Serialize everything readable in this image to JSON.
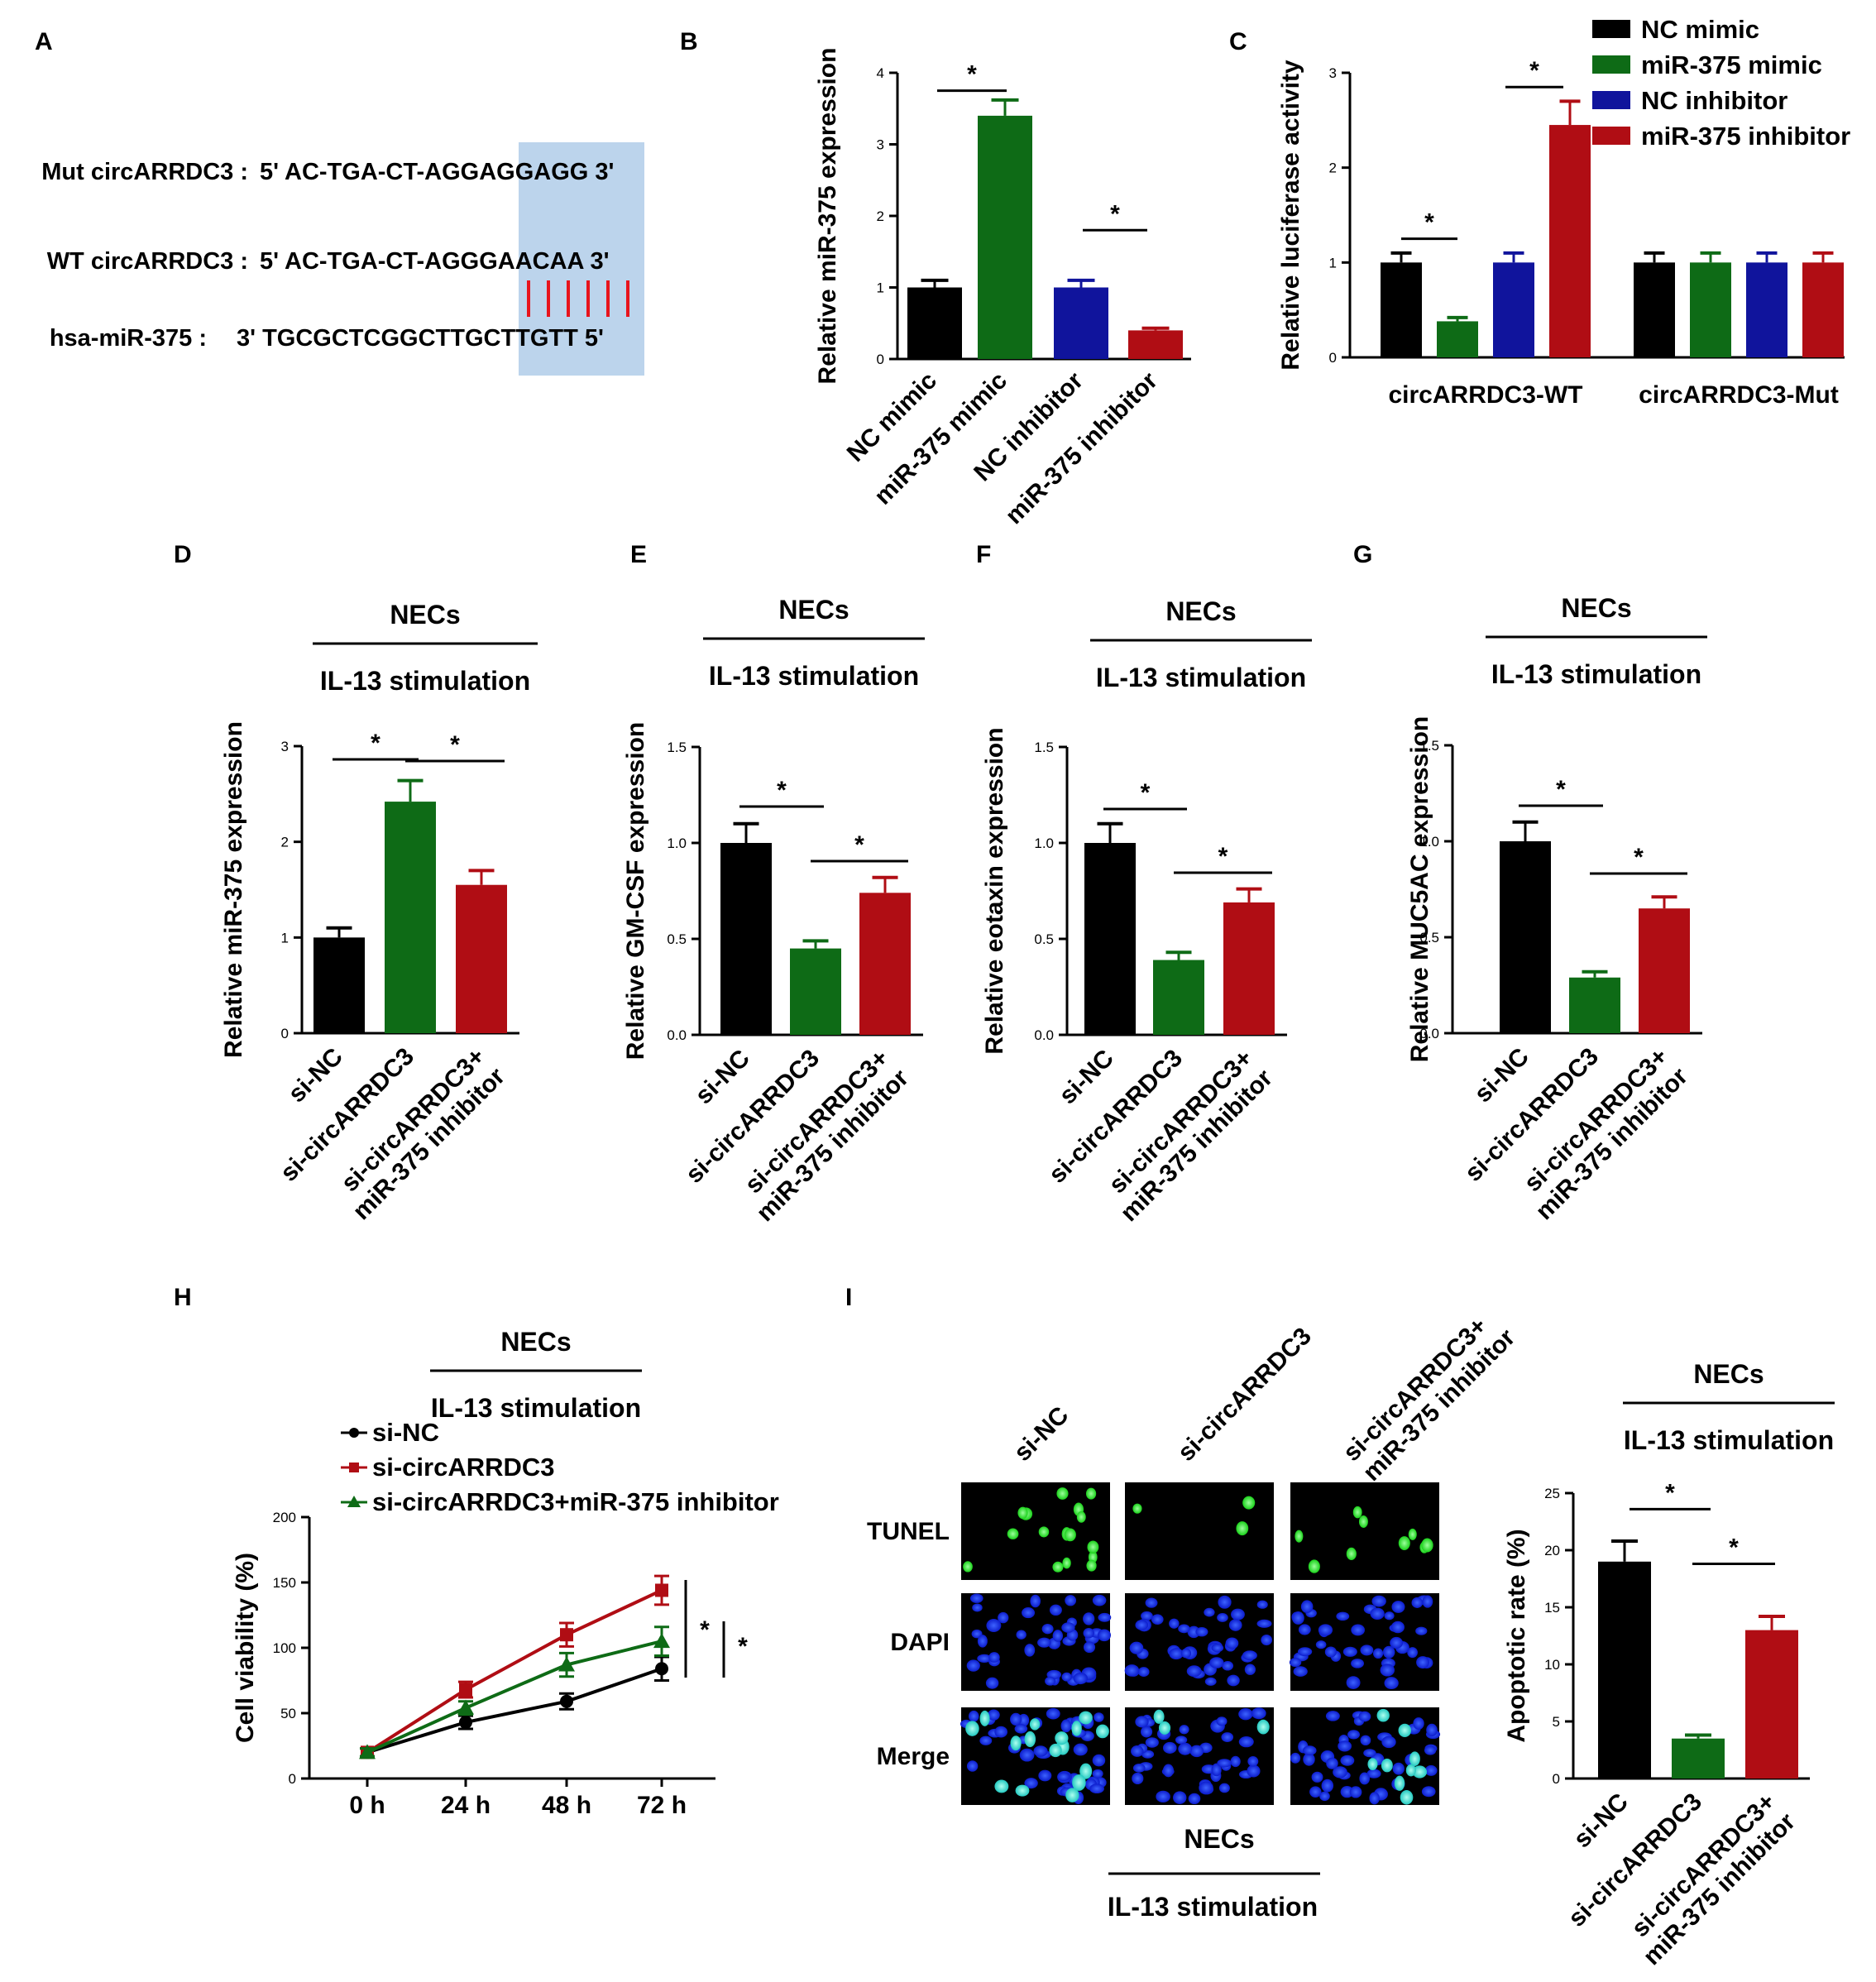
{
  "panel_labels": [
    "A",
    "B",
    "C",
    "D",
    "E",
    "F",
    "G",
    "H",
    "I"
  ],
  "panel_a": {
    "rows": [
      {
        "name": "Mut circARRDC3 :",
        "seq": "5' AC-TGA-CT-AGGAGGAGG 3'"
      },
      {
        "name": "WT circARRDC3 :",
        "seq": "5' AC-TGA-CT-AGGGAACAA 3'"
      },
      {
        "name": "hsa-miR-375 :",
        "seq": "3' TGCGCTCGGCTTGCTTGTT 5'"
      }
    ],
    "highlight_color": "#bcd4ec",
    "pair_color": "#e8141c"
  },
  "colors": {
    "black": "#000000",
    "green": "#0e6b16",
    "blue": "#10149c",
    "red": "#b00d14"
  },
  "header": {
    "cells": "NECs",
    "stim": "IL-13 stimulation"
  },
  "chart_data": [
    {
      "panel": "B",
      "type": "bar",
      "ylabel": "Relative miR-375 expression",
      "ylim": [
        0,
        4
      ],
      "yticks": [
        "0",
        "1",
        "2",
        "3",
        "4"
      ],
      "categories": [
        "NC mimic",
        "miR-375 mimic",
        "NC inhibitor",
        "miR-375 inhibitor"
      ],
      "values": [
        1.0,
        3.4,
        1.0,
        0.4
      ],
      "errors": [
        0.1,
        0.22,
        0.1,
        0.03
      ],
      "colors": [
        "black",
        "green",
        "blue",
        "red"
      ],
      "significance": [
        "*",
        "*"
      ]
    },
    {
      "panel": "C",
      "type": "bar",
      "ylabel": "Relative luciferase activity",
      "ylim": [
        0,
        3
      ],
      "yticks": [
        "0",
        "1",
        "2",
        "3"
      ],
      "groups": [
        "circARRDC3-WT",
        "circARRDC3-Mut"
      ],
      "series": [
        {
          "name": "NC mimic",
          "values": [
            1.0,
            1.0
          ],
          "errors": [
            0.1,
            0.1
          ],
          "color": "black"
        },
        {
          "name": "miR-375 mimic",
          "values": [
            0.38,
            1.0
          ],
          "errors": [
            0.04,
            0.1
          ],
          "color": "green"
        },
        {
          "name": "NC inhibitor",
          "values": [
            1.0,
            1.0
          ],
          "errors": [
            0.1,
            0.1
          ],
          "color": "blue"
        },
        {
          "name": "miR-375 inhibitor",
          "values": [
            2.45,
            1.0
          ],
          "errors": [
            0.25,
            0.1
          ],
          "color": "red"
        }
      ],
      "legend_position": "top-right",
      "significance": [
        "*",
        "*"
      ]
    },
    {
      "panel": "D",
      "type": "bar",
      "ylabel": "Relative miR-375 expression",
      "ylim": [
        0,
        3
      ],
      "yticks": [
        "0",
        "1",
        "2",
        "3"
      ],
      "categories": [
        "si-NC",
        "si-circARRDC3",
        "si-circARRDC3+\nmiR-375 inhibitor"
      ],
      "values": [
        1.0,
        2.42,
        1.55
      ],
      "errors": [
        0.1,
        0.22,
        0.15
      ],
      "colors": [
        "black",
        "green",
        "red"
      ],
      "significance": [
        "*",
        "*"
      ]
    },
    {
      "panel": "E",
      "type": "bar",
      "ylabel": "Relative GM-CSF expression",
      "ylim": [
        0,
        1.5
      ],
      "yticks": [
        "0.0",
        "0.5",
        "1.0",
        "1.5"
      ],
      "categories": [
        "si-NC",
        "si-circARRDC3",
        "si-circARRDC3+\nmiR-375 inhibitor"
      ],
      "values": [
        1.0,
        0.45,
        0.74
      ],
      "errors": [
        0.1,
        0.04,
        0.08
      ],
      "colors": [
        "black",
        "green",
        "red"
      ],
      "significance": [
        "*",
        "*"
      ]
    },
    {
      "panel": "F",
      "type": "bar",
      "ylabel": "Relative eotaxin expression",
      "ylim": [
        0,
        1.5
      ],
      "yticks": [
        "0.0",
        "0.5",
        "1.0",
        "1.5"
      ],
      "categories": [
        "si-NC",
        "si-circARRDC3",
        "si-circARRDC3+\nmiR-375 inhibitor"
      ],
      "values": [
        1.0,
        0.39,
        0.69
      ],
      "errors": [
        0.1,
        0.04,
        0.07
      ],
      "colors": [
        "black",
        "green",
        "red"
      ],
      "significance": [
        "*",
        "*"
      ]
    },
    {
      "panel": "G",
      "type": "bar",
      "ylabel": "Relative MUC5AC expression",
      "ylim": [
        0,
        1.5
      ],
      "yticks": [
        "0.0",
        "0.5",
        "1.0",
        "1.5"
      ],
      "categories": [
        "si-NC",
        "si-circARRDC3",
        "si-circARRDC3+\nmiR-375 inhibitor"
      ],
      "values": [
        1.0,
        0.29,
        0.65
      ],
      "errors": [
        0.1,
        0.03,
        0.06
      ],
      "colors": [
        "black",
        "green",
        "red"
      ],
      "significance": [
        "*",
        "*"
      ]
    },
    {
      "panel": "H",
      "type": "line",
      "ylabel": "Cell viability (%)",
      "ylim": [
        0,
        200
      ],
      "yticks": [
        "0",
        "50",
        "100",
        "150",
        "200"
      ],
      "x": [
        "0 h",
        "24 h",
        "48 h",
        "72 h"
      ],
      "series": [
        {
          "name": "si-NC",
          "values": [
            20,
            43,
            59,
            84
          ],
          "errors": [
            3,
            5,
            6,
            9
          ],
          "color": "black",
          "marker": "circle"
        },
        {
          "name": "si-circARRDC3",
          "values": [
            20,
            68,
            110,
            144
          ],
          "errors": [
            3,
            6,
            9,
            11
          ],
          "color": "red",
          "marker": "square"
        },
        {
          "name": "si-circARRDC3+miR-375 inhibitor",
          "values": [
            20,
            54,
            87,
            105
          ],
          "errors": [
            3,
            5,
            9,
            11
          ],
          "color": "green",
          "marker": "triangle"
        }
      ],
      "significance": [
        "*",
        "*"
      ]
    },
    {
      "panel": "I",
      "type": "bar",
      "ylabel": "Apoptotic rate (%)",
      "ylim": [
        0,
        25
      ],
      "yticks": [
        "0",
        "5",
        "10",
        "15",
        "20",
        "25"
      ],
      "categories": [
        "si-NC",
        "si-circARRDC3",
        "si-circARRDC3+\nmiR-375 inhibitor"
      ],
      "values": [
        19.0,
        3.5,
        13.0
      ],
      "errors": [
        1.8,
        0.3,
        1.2
      ],
      "colors": [
        "black",
        "green",
        "red"
      ],
      "significance": [
        "*",
        "*"
      ]
    }
  ],
  "panel_i_images": {
    "columns": [
      "si-NC",
      "si-circARRDC3",
      "si-circARRDC3+\nmiR-375 inhibitor"
    ],
    "rows": [
      "TUNEL",
      "DAPI",
      "Merge"
    ]
  }
}
